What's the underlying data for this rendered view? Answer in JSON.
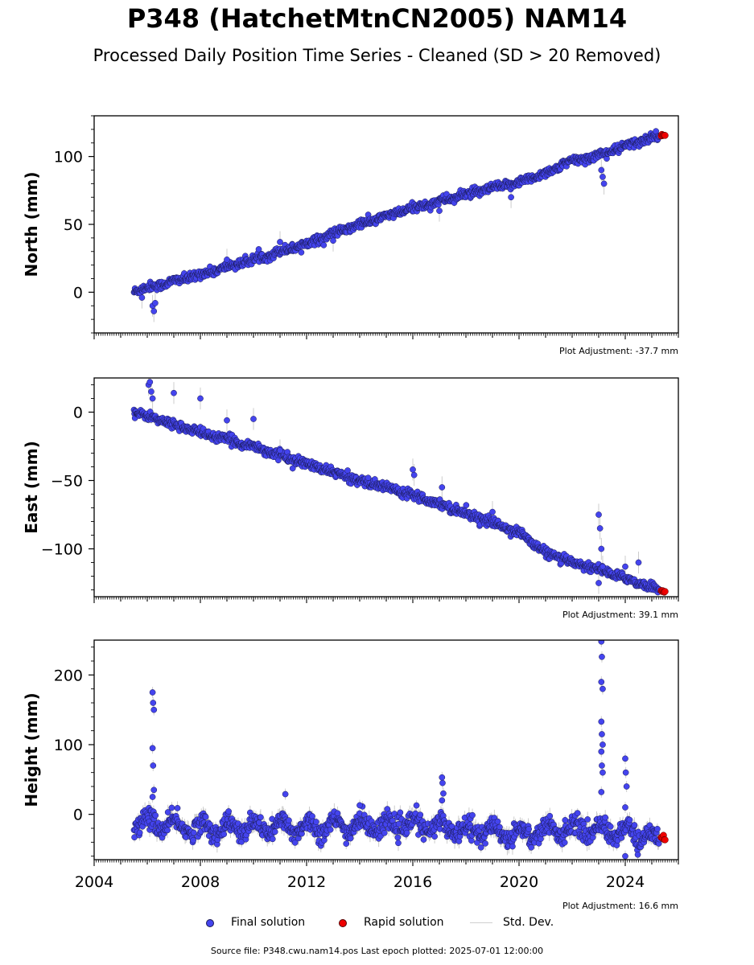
{
  "title": "P348 (HatchetMtnCN2005) NAM14",
  "subtitle": "Processed Daily Position Time Series - Cleaned (SD > 20 Removed)",
  "source_line": "Source file: P348.cwu.nam14.pos  Last epoch plotted: 2025-07-01 12:00:00",
  "legend": {
    "final": "Final solution",
    "rapid": "Rapid solution",
    "std": "Std. Dev."
  },
  "colors": {
    "final": "#4444ee",
    "final_edge": "#1a1a55",
    "rapid": "#ee0000",
    "std": "#cccccc"
  },
  "chart_data": [
    {
      "type": "scatter",
      "ylabel": "North (mm)",
      "adjustment": "Plot Adjustment: -37.7 mm",
      "xlim": [
        2004,
        2026
      ],
      "ylim": [
        -30,
        130
      ],
      "yticks": [
        0,
        50,
        100
      ],
      "xticks": [
        2004,
        2008,
        2012,
        2016,
        2020,
        2024
      ],
      "show_xticklabels": false,
      "trend": [
        [
          2005.5,
          1
        ],
        [
          2025.4,
          116
        ]
      ],
      "gaps": [
        [
          2021.5,
          21.6
        ]
      ],
      "outliers": [
        [
          2005.8,
          -4
        ],
        [
          2006.2,
          -10
        ],
        [
          2006.25,
          -14
        ],
        [
          2006.3,
          -8
        ],
        [
          2009.0,
          24
        ],
        [
          2011.0,
          37
        ],
        [
          2013.0,
          38
        ],
        [
          2017.0,
          60
        ],
        [
          2019.7,
          70
        ],
        [
          2023.1,
          90
        ],
        [
          2023.15,
          85
        ],
        [
          2023.2,
          80
        ]
      ],
      "series": [
        {
          "name": "Final solution",
          "x": [
            2005.5,
            2007.0,
            2008.0,
            2010.0,
            2012.0,
            2014.0,
            2016.0,
            2018.0,
            2020.0,
            2021.3,
            2021.7,
            2023.0,
            2025.3
          ],
          "y": [
            1,
            8,
            13,
            24,
            36,
            50,
            62,
            72,
            81,
            90,
            95,
            101,
            116
          ]
        },
        {
          "name": "Rapid solution",
          "x": [
            2025.35,
            2025.5
          ],
          "y": [
            116,
            116
          ]
        }
      ]
    },
    {
      "type": "scatter",
      "ylabel": "East (mm)",
      "adjustment": "Plot Adjustment: 39.1 mm",
      "xlim": [
        2004,
        2026
      ],
      "ylim": [
        -135,
        25
      ],
      "yticks": [
        0,
        -50,
        -100
      ],
      "xticks": [
        2004,
        2008,
        2012,
        2016,
        2020,
        2024
      ],
      "show_xticklabels": false,
      "trend": [
        [
          2005.5,
          0
        ],
        [
          2025.4,
          -130
        ]
      ],
      "gaps": [
        [
          2021.0,
          21.7
        ]
      ],
      "outliers": [
        [
          2006.05,
          20
        ],
        [
          2006.1,
          22
        ],
        [
          2006.15,
          15
        ],
        [
          2006.2,
          10
        ],
        [
          2007.0,
          14
        ],
        [
          2008.0,
          10
        ],
        [
          2009.0,
          -6
        ],
        [
          2010.0,
          -5
        ],
        [
          2011.0,
          -28
        ],
        [
          2016.0,
          -42
        ],
        [
          2016.05,
          -46
        ],
        [
          2017.1,
          -55
        ],
        [
          2019.0,
          -73
        ],
        [
          2023.0,
          -75
        ],
        [
          2023.05,
          -85
        ],
        [
          2023.1,
          -100
        ],
        [
          2023.15,
          -113
        ],
        [
          2023.0,
          -125
        ],
        [
          2024.0,
          -113
        ],
        [
          2024.5,
          -110
        ]
      ],
      "series": [
        {
          "name": "Final solution",
          "x": [
            2005.5,
            2008.0,
            2010.0,
            2012.0,
            2014.0,
            2016.0,
            2018.0,
            2020.0,
            2021.0,
            2021.7,
            2023.0,
            2025.3
          ],
          "y": [
            0,
            -15,
            -25,
            -38,
            -50,
            -60,
            -74,
            -88,
            -103,
            -108,
            -115,
            -130
          ]
        },
        {
          "name": "Rapid solution",
          "x": [
            2025.35,
            2025.5
          ],
          "y": [
            -131,
            -131
          ]
        }
      ]
    },
    {
      "type": "scatter",
      "ylabel": "Height (mm)",
      "adjustment": "Plot Adjustment: 16.6 mm",
      "xlim": [
        2004,
        2026
      ],
      "ylim": [
        -65,
        250
      ],
      "yticks": [
        0,
        100,
        200
      ],
      "xticks": [
        2004,
        2008,
        2012,
        2016,
        2020,
        2024
      ],
      "show_xticklabels": true,
      "trend": [
        [
          2005.5,
          -15
        ],
        [
          2025.4,
          -25
        ]
      ],
      "gaps": [
        [
          2021.5,
          21.7
        ]
      ],
      "outliers": [
        [
          2006.2,
          175
        ],
        [
          2006.22,
          160
        ],
        [
          2006.25,
          150
        ],
        [
          2006.2,
          95
        ],
        [
          2006.22,
          70
        ],
        [
          2006.25,
          35
        ],
        [
          2006.2,
          25
        ],
        [
          2011.2,
          29
        ],
        [
          2014.0,
          13
        ],
        [
          2017.1,
          53
        ],
        [
          2017.12,
          45
        ],
        [
          2017.15,
          30
        ],
        [
          2017.1,
          20
        ],
        [
          2023.1,
          248
        ],
        [
          2023.12,
          226
        ],
        [
          2023.1,
          190
        ],
        [
          2023.15,
          180
        ],
        [
          2023.1,
          133
        ],
        [
          2023.12,
          115
        ],
        [
          2023.15,
          100
        ],
        [
          2023.1,
          90
        ],
        [
          2023.12,
          70
        ],
        [
          2023.15,
          60
        ],
        [
          2023.1,
          32
        ],
        [
          2024.0,
          80
        ],
        [
          2024.02,
          60
        ],
        [
          2024.05,
          40
        ],
        [
          2024.0,
          10
        ],
        [
          2024.0,
          -60
        ]
      ],
      "series": [
        {
          "name": "Final solution",
          "x": [
            2005.5,
            2008.0,
            2012.0,
            2016.0,
            2020.0,
            2022.0,
            2024.0,
            2025.3
          ],
          "y": [
            -10,
            -20,
            -18,
            -15,
            -28,
            -20,
            -25,
            -35
          ]
        },
        {
          "name": "Rapid solution",
          "x": [
            2025.35,
            2025.5
          ],
          "y": [
            -32,
            -36
          ]
        }
      ]
    }
  ]
}
